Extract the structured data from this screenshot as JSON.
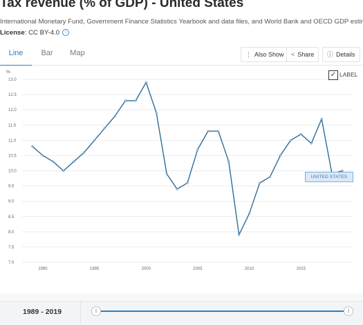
{
  "header": {
    "title": "Tax revenue (% of GDP) - United States",
    "source": "International Monetary Fund, Government Finance Statistics Yearbook and data files, and World Bank and OECD GDP estimates.",
    "license_label": "License",
    "license_value": ": CC BY-4.0"
  },
  "tabs": [
    {
      "label": "Line",
      "active": true
    },
    {
      "label": "Bar",
      "active": false
    },
    {
      "label": "Map",
      "active": false
    }
  ],
  "toolbar": {
    "also_show": "Also Show",
    "share": "Share",
    "details": "Details"
  },
  "label_toggle": {
    "label": "LABEL",
    "checked": true
  },
  "series_tag": "UNITED STATES",
  "range": {
    "text": "1989 - 2019",
    "start": 1989,
    "end": 2019
  },
  "colors": {
    "accent": "#2a7dc4",
    "line": "#2e6b98",
    "grid": "#e8ebee"
  },
  "chart_data": {
    "type": "line",
    "title": "",
    "xlabel": "",
    "ylabel": "%",
    "x": [
      1989,
      1990,
      1991,
      1992,
      1993,
      1994,
      1995,
      1996,
      1997,
      1998,
      1999,
      2000,
      2001,
      2002,
      2003,
      2004,
      2005,
      2006,
      2007,
      2008,
      2009,
      2010,
      2011,
      2012,
      2013,
      2014,
      2015,
      2016,
      2017,
      2018,
      2019
    ],
    "series": [
      {
        "name": "United States",
        "values": [
          10.8,
          10.5,
          10.3,
          10.0,
          10.3,
          10.6,
          11.0,
          11.4,
          11.8,
          12.3,
          12.3,
          12.9,
          11.9,
          9.9,
          9.4,
          9.6,
          10.7,
          11.3,
          11.3,
          10.3,
          7.9,
          8.6,
          9.6,
          9.8,
          10.5,
          11.0,
          11.2,
          10.9,
          11.7,
          9.9,
          10.0
        ]
      }
    ],
    "xticks": [
      1990,
      1995,
      2000,
      2005,
      2010,
      2015
    ],
    "xtick_labels": [
      "1990",
      "1995",
      "2000",
      "2005",
      "2010",
      "2015"
    ],
    "yticks": [
      7.0,
      7.5,
      8.0,
      8.5,
      9.0,
      9.5,
      10.0,
      10.5,
      11.0,
      11.5,
      12.0,
      12.5,
      13.0
    ],
    "ytick_labels": [
      "7.0",
      "7.5",
      "8.0",
      "8.5",
      "9.0",
      "9.5",
      "10.0",
      "10.5",
      "11.0",
      "11.5",
      "12.0",
      "12.5",
      "13.0"
    ],
    "ylim": [
      7.0,
      13.0
    ],
    "xlim": [
      1988,
      2020
    ],
    "grid": true,
    "legend": "none"
  }
}
